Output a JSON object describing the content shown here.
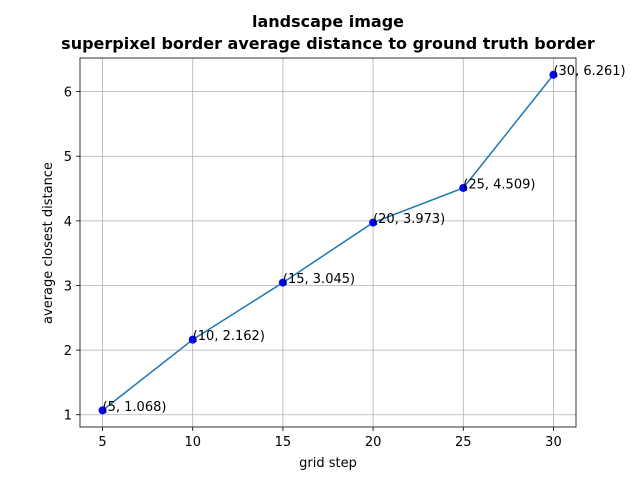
{
  "chart_data": {
    "type": "line",
    "title_line1": "landscape image",
    "title_line2": "superpixel border average distance to ground truth border",
    "xlabel": "grid step",
    "ylabel": "average closest distance",
    "x": [
      5,
      10,
      15,
      20,
      25,
      30
    ],
    "y": [
      1.068,
      2.162,
      3.045,
      3.973,
      4.509,
      6.261
    ],
    "point_labels": [
      "(5, 1.068)",
      "(10, 2.162)",
      "(15, 3.045)",
      "(20, 3.973)",
      "(25, 4.509)",
      "(30, 6.261)"
    ],
    "xlim": [
      3.75,
      31.25
    ],
    "ylim": [
      0.81,
      6.52
    ],
    "xticks": [
      5,
      10,
      15,
      20,
      25,
      30
    ],
    "yticks": [
      1,
      2,
      3,
      4,
      5,
      6
    ],
    "grid": true,
    "line_color": "#1f77b4",
    "marker_color": "#0000ff"
  }
}
